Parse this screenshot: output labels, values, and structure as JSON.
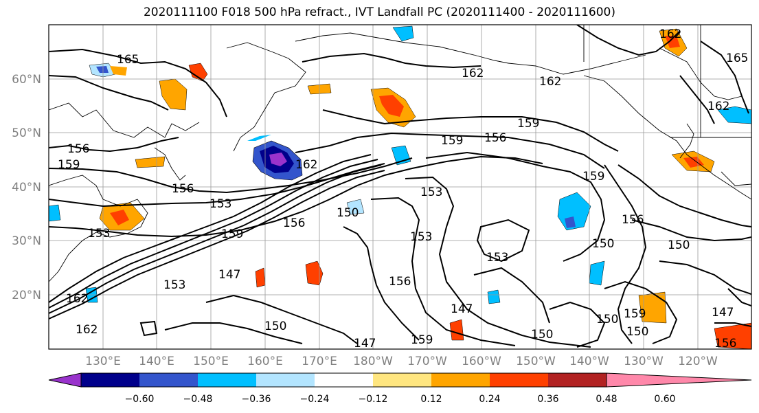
{
  "title": "2020111100 F018 500 hPa refract., IVT Landfall PC (2020111400 - 2020111600)",
  "lat_labels": [
    "60°N",
    "50°N",
    "40°N",
    "30°N",
    "20°N"
  ],
  "lon_labels": [
    "130°E",
    "140°E",
    "150°E",
    "160°E",
    "170°E",
    "180°W",
    "170°W",
    "160°W",
    "150°W",
    "140°W",
    "130°W",
    "120°W"
  ],
  "colorbar": {
    "colors": [
      "#9933cc",
      "#00008b",
      "#3355cc",
      "#00bfff",
      "#b3e5ff",
      "#ffffff",
      "#ffe680",
      "#ffa500",
      "#ff4000",
      "#b22222",
      "#ff88aa"
    ],
    "tick_labels": [
      "−0.60",
      "−0.48",
      "−0.36",
      "−0.24",
      "−0.12",
      "0.12",
      "0.24",
      "0.36",
      "0.48",
      "0.60"
    ]
  },
  "contour_labels": [
    "165",
    "162",
    "162",
    "162",
    "165",
    "162",
    "156",
    "159",
    "159",
    "156",
    "159",
    "162",
    "156",
    "153",
    "150",
    "153",
    "159",
    "156",
    "159",
    "153",
    "153",
    "150",
    "156",
    "150",
    "147",
    "153",
    "156",
    "147",
    "150",
    "159",
    "150",
    "150",
    "150",
    "159",
    "156",
    "153",
    "147",
    "147",
    "162",
    "162"
  ]
}
